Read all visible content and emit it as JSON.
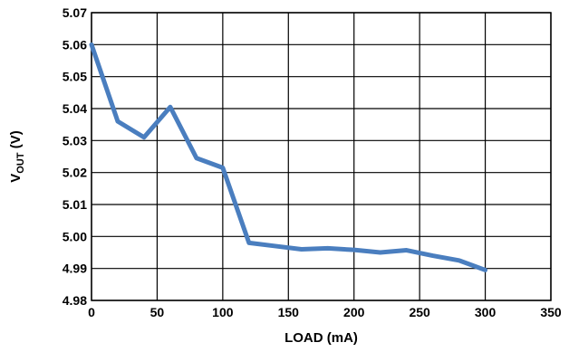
{
  "chart_data": {
    "type": "line",
    "xlabel": "LOAD (mA)",
    "ylabel": {
      "main": "V",
      "subscript": "OUT",
      "suffix": " (V)"
    },
    "xlim": [
      0,
      350
    ],
    "ylim": [
      4.98,
      5.07
    ],
    "x_ticks": [
      0,
      50,
      100,
      150,
      200,
      250,
      300,
      350
    ],
    "x_tick_labels": [
      "0",
      "50",
      "100",
      "150",
      "200",
      "250",
      "300",
      "350"
    ],
    "y_ticks": [
      4.98,
      4.99,
      5.0,
      5.01,
      5.02,
      5.03,
      5.04,
      5.05,
      5.06,
      5.07
    ],
    "y_tick_labels": [
      "4.98",
      "4.99",
      "5.00",
      "5.01",
      "5.02",
      "5.03",
      "5.04",
      "5.05",
      "5.06",
      "5.07"
    ],
    "grid": true,
    "series": [
      {
        "color": "#4a7ebf",
        "x": [
          0,
          20,
          40,
          60,
          80,
          100,
          120,
          140,
          160,
          180,
          200,
          220,
          240,
          260,
          280,
          300
        ],
        "y": [
          5.06,
          5.036,
          5.031,
          5.0405,
          5.0245,
          5.0215,
          4.998,
          4.997,
          4.996,
          4.9963,
          4.9958,
          4.995,
          4.9957,
          4.994,
          4.9925,
          4.9895
        ]
      }
    ]
  }
}
